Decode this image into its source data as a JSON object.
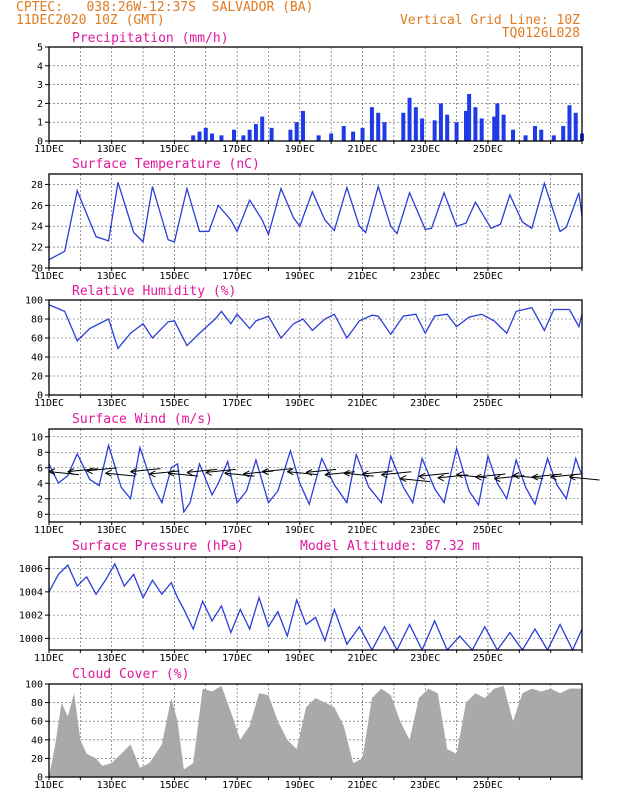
{
  "header": {
    "line1": "CPTEC:   038:26W-12:37S  SALVADOR (BA)",
    "line2": "11DEC2020 10Z (GMT)",
    "grid_note": "Vertical Grid Line: 10Z",
    "code": "TQ0126L028"
  },
  "x_labels": [
    "11DEC",
    "13DEC",
    "15DEC",
    "17DEC",
    "19DEC",
    "21DEC",
    "23DEC",
    "25DEC"
  ],
  "colors": {
    "header": "#e07b20",
    "title": "#e0179b",
    "line": "#2a3ed8",
    "bar": "#1f3be8",
    "cloud": "#a9a9a9",
    "grid": "#555555"
  },
  "chart_data": [
    {
      "id": "precip",
      "type": "bar",
      "title": "Precipitation (mm/h)",
      "ylim": [
        0,
        5
      ],
      "yticks": [
        0,
        1,
        2,
        3,
        4,
        5
      ],
      "x_unit": "days since 11DEC 10Z",
      "points": [
        [
          4.6,
          0.3
        ],
        [
          4.8,
          0.5
        ],
        [
          5.0,
          0.7
        ],
        [
          5.2,
          0.4
        ],
        [
          5.5,
          0.3
        ],
        [
          5.9,
          0.6
        ],
        [
          6.2,
          0.3
        ],
        [
          6.4,
          0.6
        ],
        [
          6.6,
          0.9
        ],
        [
          6.8,
          1.3
        ],
        [
          7.1,
          0.7
        ],
        [
          7.7,
          0.6
        ],
        [
          7.9,
          1.0
        ],
        [
          8.1,
          1.6
        ],
        [
          8.6,
          0.3
        ],
        [
          9.0,
          0.4
        ],
        [
          9.4,
          0.8
        ],
        [
          9.7,
          0.5
        ],
        [
          10.0,
          0.7
        ],
        [
          10.3,
          1.8
        ],
        [
          10.5,
          1.5
        ],
        [
          10.7,
          1.0
        ],
        [
          11.3,
          1.5
        ],
        [
          11.5,
          2.3
        ],
        [
          11.7,
          1.8
        ],
        [
          11.9,
          1.2
        ],
        [
          12.3,
          1.1
        ],
        [
          12.5,
          2.0
        ],
        [
          12.7,
          1.4
        ],
        [
          13.0,
          1.0
        ],
        [
          13.3,
          1.6
        ],
        [
          13.4,
          2.5
        ],
        [
          13.6,
          1.8
        ],
        [
          13.8,
          1.2
        ],
        [
          14.2,
          1.3
        ],
        [
          14.3,
          2.0
        ],
        [
          14.5,
          1.4
        ],
        [
          14.8,
          0.6
        ],
        [
          15.2,
          0.3
        ],
        [
          15.5,
          0.8
        ],
        [
          15.7,
          0.6
        ],
        [
          16.1,
          0.3
        ],
        [
          16.4,
          0.8
        ],
        [
          16.6,
          1.9
        ],
        [
          16.8,
          1.5
        ],
        [
          17.0,
          0.4
        ]
      ]
    },
    {
      "id": "temp",
      "type": "line",
      "title": "Surface Temperature (nC)",
      "ylim": [
        20,
        29
      ],
      "yticks": [
        20,
        22,
        24,
        26,
        28
      ],
      "x_unit": "days since 11DEC 10Z",
      "points": [
        [
          0.0,
          20.8
        ],
        [
          0.5,
          21.6
        ],
        [
          0.9,
          27.4
        ],
        [
          1.5,
          23.0
        ],
        [
          1.9,
          22.6
        ],
        [
          2.2,
          28.2
        ],
        [
          2.7,
          23.4
        ],
        [
          3.0,
          22.5
        ],
        [
          3.3,
          27.8
        ],
        [
          3.8,
          22.7
        ],
        [
          4.0,
          22.5
        ],
        [
          4.4,
          27.6
        ],
        [
          4.8,
          23.5
        ],
        [
          5.1,
          23.5
        ],
        [
          5.4,
          26.0
        ],
        [
          5.8,
          24.6
        ],
        [
          6.0,
          23.5
        ],
        [
          6.4,
          26.5
        ],
        [
          6.8,
          24.6
        ],
        [
          7.0,
          23.2
        ],
        [
          7.4,
          27.6
        ],
        [
          7.8,
          24.8
        ],
        [
          8.0,
          24.0
        ],
        [
          8.4,
          27.3
        ],
        [
          8.8,
          24.6
        ],
        [
          9.1,
          23.6
        ],
        [
          9.5,
          27.7
        ],
        [
          9.9,
          24.0
        ],
        [
          10.1,
          23.4
        ],
        [
          10.5,
          27.8
        ],
        [
          10.9,
          24.0
        ],
        [
          11.1,
          23.3
        ],
        [
          11.5,
          27.2
        ],
        [
          12.0,
          23.7
        ],
        [
          12.2,
          23.8
        ],
        [
          12.6,
          27.2
        ],
        [
          13.0,
          24.0
        ],
        [
          13.3,
          24.3
        ],
        [
          13.6,
          26.3
        ],
        [
          14.1,
          23.8
        ],
        [
          14.4,
          24.2
        ],
        [
          14.7,
          27.0
        ],
        [
          15.1,
          24.4
        ],
        [
          15.4,
          23.8
        ],
        [
          15.8,
          28.1
        ],
        [
          16.3,
          23.5
        ],
        [
          16.5,
          23.9
        ],
        [
          16.9,
          27.2
        ],
        [
          17.0,
          25.0
        ]
      ]
    },
    {
      "id": "rh",
      "type": "line",
      "title": "Relative Humidity (%)",
      "ylim": [
        0,
        100
      ],
      "yticks": [
        0,
        20,
        40,
        60,
        80,
        100
      ],
      "x_unit": "days since 11DEC 10Z",
      "points": [
        [
          0.0,
          95
        ],
        [
          0.5,
          88
        ],
        [
          0.9,
          57
        ],
        [
          1.3,
          70
        ],
        [
          1.6,
          75
        ],
        [
          1.9,
          80
        ],
        [
          2.2,
          49
        ],
        [
          2.6,
          65
        ],
        [
          3.0,
          75
        ],
        [
          3.3,
          60
        ],
        [
          3.8,
          77
        ],
        [
          4.0,
          78
        ],
        [
          4.4,
          52
        ],
        [
          4.8,
          65
        ],
        [
          5.3,
          80
        ],
        [
          5.5,
          88
        ],
        [
          5.8,
          75
        ],
        [
          6.0,
          85
        ],
        [
          6.4,
          70
        ],
        [
          6.6,
          78
        ],
        [
          7.0,
          83
        ],
        [
          7.4,
          60
        ],
        [
          7.8,
          75
        ],
        [
          8.1,
          80
        ],
        [
          8.4,
          68
        ],
        [
          8.8,
          80
        ],
        [
          9.1,
          85
        ],
        [
          9.5,
          60
        ],
        [
          9.9,
          78
        ],
        [
          10.3,
          84
        ],
        [
          10.5,
          83
        ],
        [
          10.9,
          64
        ],
        [
          11.3,
          83
        ],
        [
          11.7,
          85
        ],
        [
          12.0,
          65
        ],
        [
          12.3,
          83
        ],
        [
          12.7,
          85
        ],
        [
          13.0,
          72
        ],
        [
          13.4,
          82
        ],
        [
          13.8,
          85
        ],
        [
          14.2,
          78
        ],
        [
          14.6,
          65
        ],
        [
          14.9,
          88
        ],
        [
          15.4,
          92
        ],
        [
          15.8,
          68
        ],
        [
          16.1,
          90
        ],
        [
          16.6,
          90
        ],
        [
          16.9,
          72
        ],
        [
          17.0,
          85
        ]
      ]
    },
    {
      "id": "wind",
      "type": "line",
      "title": "Surface Wind (m/s)",
      "ylim": [
        -1,
        11
      ],
      "yticks": [
        0,
        2,
        4,
        6,
        8,
        10
      ],
      "x_unit": "days since 11DEC 10Z",
      "points": [
        [
          0.0,
          6.5
        ],
        [
          0.3,
          4.0
        ],
        [
          0.6,
          5.0
        ],
        [
          0.9,
          7.8
        ],
        [
          1.3,
          4.5
        ],
        [
          1.6,
          3.7
        ],
        [
          1.9,
          8.9
        ],
        [
          2.3,
          3.5
        ],
        [
          2.6,
          2.0
        ],
        [
          2.9,
          8.6
        ],
        [
          3.3,
          3.8
        ],
        [
          3.6,
          1.5
        ],
        [
          3.9,
          6.0
        ],
        [
          4.1,
          6.5
        ],
        [
          4.3,
          0.3
        ],
        [
          4.5,
          1.5
        ],
        [
          4.8,
          6.5
        ],
        [
          5.2,
          2.5
        ],
        [
          5.4,
          4.0
        ],
        [
          5.7,
          6.8
        ],
        [
          6.0,
          1.5
        ],
        [
          6.3,
          3.0
        ],
        [
          6.6,
          7.0
        ],
        [
          7.0,
          1.5
        ],
        [
          7.3,
          3.0
        ],
        [
          7.7,
          8.2
        ],
        [
          8.0,
          4.0
        ],
        [
          8.3,
          1.3
        ],
        [
          8.7,
          7.2
        ],
        [
          9.1,
          3.8
        ],
        [
          9.5,
          1.5
        ],
        [
          9.8,
          7.7
        ],
        [
          10.2,
          3.5
        ],
        [
          10.6,
          1.5
        ],
        [
          10.9,
          7.5
        ],
        [
          11.3,
          3.5
        ],
        [
          11.6,
          1.5
        ],
        [
          11.9,
          7.2
        ],
        [
          12.3,
          3.3
        ],
        [
          12.6,
          1.5
        ],
        [
          13.0,
          8.5
        ],
        [
          13.4,
          3.0
        ],
        [
          13.7,
          1.2
        ],
        [
          14.0,
          7.5
        ],
        [
          14.3,
          4.0
        ],
        [
          14.6,
          2.0
        ],
        [
          14.9,
          7.0
        ],
        [
          15.2,
          3.5
        ],
        [
          15.5,
          1.3
        ],
        [
          15.9,
          7.2
        ],
        [
          16.2,
          3.8
        ],
        [
          16.5,
          2.0
        ],
        [
          16.8,
          7.2
        ],
        [
          17.0,
          5.0
        ]
      ],
      "vector_points": [
        [
          0.0,
          5.5
        ],
        [
          0.6,
          5.5
        ],
        [
          1.2,
          5.6
        ],
        [
          1.8,
          5.3
        ],
        [
          2.6,
          5.5
        ],
        [
          3.2,
          5.2
        ],
        [
          3.8,
          5.3
        ],
        [
          4.4,
          5.4
        ],
        [
          5.0,
          5.4
        ],
        [
          5.6,
          5.3
        ],
        [
          6.2,
          5.2
        ],
        [
          6.8,
          5.5
        ],
        [
          7.6,
          5.5
        ],
        [
          8.2,
          5.4
        ],
        [
          8.8,
          5.1
        ],
        [
          9.4,
          5.3
        ],
        [
          10.0,
          5.2
        ],
        [
          10.6,
          5.1
        ],
        [
          11.2,
          4.6
        ],
        [
          11.8,
          4.9
        ],
        [
          12.4,
          4.7
        ],
        [
          13.0,
          5.1
        ],
        [
          13.6,
          4.8
        ],
        [
          14.2,
          4.6
        ],
        [
          14.8,
          5.0
        ],
        [
          15.4,
          4.8
        ],
        [
          16.0,
          4.8
        ],
        [
          16.6,
          4.8
        ]
      ]
    },
    {
      "id": "pres",
      "type": "line",
      "title": "Surface Pressure (hPa)",
      "annotation": "Model Altitude: 87.32 m",
      "ylim": [
        999,
        1007
      ],
      "yticks": [
        1000,
        1002,
        1004,
        1006
      ],
      "x_unit": "days since 11DEC 10Z",
      "points": [
        [
          0.0,
          1004.0
        ],
        [
          0.3,
          1005.5
        ],
        [
          0.6,
          1006.3
        ],
        [
          0.9,
          1004.5
        ],
        [
          1.2,
          1005.3
        ],
        [
          1.5,
          1003.8
        ],
        [
          1.8,
          1005.0
        ],
        [
          2.1,
          1006.4
        ],
        [
          2.4,
          1004.5
        ],
        [
          2.7,
          1005.5
        ],
        [
          3.0,
          1003.5
        ],
        [
          3.3,
          1005.0
        ],
        [
          3.6,
          1003.8
        ],
        [
          3.9,
          1004.8
        ],
        [
          4.1,
          1003.5
        ],
        [
          4.3,
          1002.5
        ],
        [
          4.6,
          1000.8
        ],
        [
          4.9,
          1003.2
        ],
        [
          5.2,
          1001.5
        ],
        [
          5.5,
          1002.8
        ],
        [
          5.8,
          1000.5
        ],
        [
          6.1,
          1002.5
        ],
        [
          6.4,
          1000.8
        ],
        [
          6.7,
          1003.5
        ],
        [
          7.0,
          1001.0
        ],
        [
          7.3,
          1002.3
        ],
        [
          7.6,
          1000.2
        ],
        [
          7.9,
          1003.3
        ],
        [
          8.2,
          1001.2
        ],
        [
          8.5,
          1001.8
        ],
        [
          8.8,
          999.8
        ],
        [
          9.1,
          1002.5
        ],
        [
          9.5,
          999.5
        ],
        [
          9.9,
          1001.0
        ],
        [
          10.3,
          999.0
        ],
        [
          10.7,
          1001.0
        ],
        [
          11.1,
          999.0
        ],
        [
          11.5,
          1001.2
        ],
        [
          11.9,
          999.0
        ],
        [
          12.3,
          1001.5
        ],
        [
          12.7,
          999.0
        ],
        [
          13.1,
          1000.2
        ],
        [
          13.5,
          998.8
        ],
        [
          13.9,
          1001.0
        ],
        [
          14.3,
          998.5
        ],
        [
          14.7,
          1000.5
        ],
        [
          15.1,
          998.7
        ],
        [
          15.5,
          1000.8
        ],
        [
          15.9,
          998.5
        ],
        [
          16.3,
          1001.2
        ],
        [
          16.7,
          999.0
        ],
        [
          17.0,
          1000.8
        ]
      ]
    },
    {
      "id": "cloud",
      "type": "area",
      "title": "Cloud Cover (%)",
      "ylim": [
        0,
        100
      ],
      "yticks": [
        0,
        20,
        40,
        60,
        80,
        100
      ],
      "x_unit": "days since 11DEC 10Z",
      "points": [
        [
          0.0,
          0
        ],
        [
          0.2,
          35
        ],
        [
          0.4,
          80
        ],
        [
          0.6,
          65
        ],
        [
          0.8,
          90
        ],
        [
          1.0,
          40
        ],
        [
          1.2,
          25
        ],
        [
          1.5,
          20
        ],
        [
          1.7,
          12
        ],
        [
          2.0,
          15
        ],
        [
          2.3,
          25
        ],
        [
          2.6,
          35
        ],
        [
          2.9,
          10
        ],
        [
          3.2,
          15
        ],
        [
          3.4,
          25
        ],
        [
          3.6,
          35
        ],
        [
          3.9,
          85
        ],
        [
          4.1,
          60
        ],
        [
          4.3,
          8
        ],
        [
          4.6,
          15
        ],
        [
          4.9,
          95
        ],
        [
          5.2,
          92
        ],
        [
          5.5,
          98
        ],
        [
          5.8,
          70
        ],
        [
          6.1,
          40
        ],
        [
          6.4,
          55
        ],
        [
          6.7,
          90
        ],
        [
          7.0,
          88
        ],
        [
          7.3,
          60
        ],
        [
          7.6,
          40
        ],
        [
          7.9,
          30
        ],
        [
          8.2,
          75
        ],
        [
          8.5,
          85
        ],
        [
          8.8,
          80
        ],
        [
          9.1,
          75
        ],
        [
          9.4,
          55
        ],
        [
          9.7,
          15
        ],
        [
          10.0,
          20
        ],
        [
          10.3,
          85
        ],
        [
          10.6,
          95
        ],
        [
          10.9,
          88
        ],
        [
          11.2,
          60
        ],
        [
          11.5,
          40
        ],
        [
          11.8,
          85
        ],
        [
          12.1,
          95
        ],
        [
          12.4,
          90
        ],
        [
          12.7,
          30
        ],
        [
          13.0,
          25
        ],
        [
          13.3,
          80
        ],
        [
          13.6,
          90
        ],
        [
          13.9,
          85
        ],
        [
          14.2,
          95
        ],
        [
          14.5,
          98
        ],
        [
          14.8,
          60
        ],
        [
          15.1,
          90
        ],
        [
          15.4,
          95
        ],
        [
          15.7,
          92
        ],
        [
          16.0,
          95
        ],
        [
          16.3,
          90
        ],
        [
          16.6,
          95
        ],
        [
          17.0,
          95
        ]
      ]
    }
  ]
}
